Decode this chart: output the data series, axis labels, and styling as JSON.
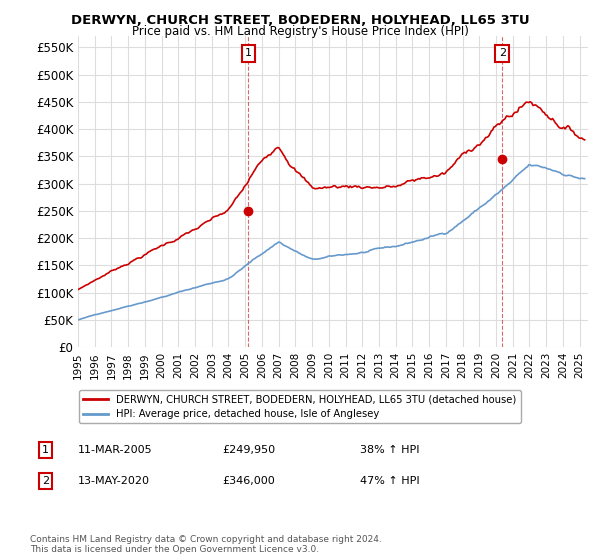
{
  "title": "DERWYN, CHURCH STREET, BODEDERN, HOLYHEAD, LL65 3TU",
  "subtitle": "Price paid vs. HM Land Registry's House Price Index (HPI)",
  "ylabel_ticks": [
    "£0",
    "£50K",
    "£100K",
    "£150K",
    "£200K",
    "£250K",
    "£300K",
    "£350K",
    "£400K",
    "£450K",
    "£500K",
    "£550K"
  ],
  "ytick_vals": [
    0,
    50000,
    100000,
    150000,
    200000,
    250000,
    300000,
    350000,
    400000,
    450000,
    500000,
    550000
  ],
  "ylim": [
    0,
    570000
  ],
  "xlim_start": 1995.0,
  "xlim_end": 2025.5,
  "sale1_x": 2005.19,
  "sale1_y": 249950,
  "sale2_x": 2020.37,
  "sale2_y": 346000,
  "sale1_date": "11-MAR-2005",
  "sale1_price": "£249,950",
  "sale1_hpi": "38% ↑ HPI",
  "sale2_date": "13-MAY-2020",
  "sale2_price": "£346,000",
  "sale2_hpi": "47% ↑ HPI",
  "line1_color": "#cc0000",
  "line2_color": "#6699cc",
  "background_color": "#ffffff",
  "grid_color": "#dddddd",
  "legend1_text": "DERWYN, CHURCH STREET, BODEDERN, HOLYHEAD, LL65 3TU (detached house)",
  "legend2_text": "HPI: Average price, detached house, Isle of Anglesey",
  "footer1": "Contains HM Land Registry data © Crown copyright and database right 2024.",
  "footer2": "This data is licensed under the Open Government Licence v3.0."
}
